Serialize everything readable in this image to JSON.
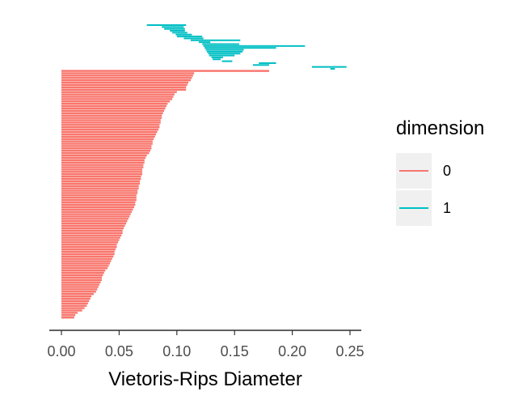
{
  "chart_data": {
    "type": "barcode",
    "title": "",
    "xlabel": "Vietoris-Rips Diameter",
    "ylabel": "",
    "xlim": [
      -0.01,
      0.26
    ],
    "x_ticks": [
      0.0,
      0.05,
      0.1,
      0.15,
      0.2,
      0.25
    ],
    "x_tick_labels": [
      "0.00",
      "0.05",
      "0.10",
      "0.15",
      "0.20",
      "0.25"
    ],
    "grid": false,
    "legend": {
      "title": "dimension",
      "position": "right",
      "entries": [
        {
          "label": "0",
          "color": "#F8766D"
        },
        {
          "label": "1",
          "color": "#00BFC4"
        }
      ]
    },
    "series": [
      {
        "name": "0",
        "color": "#F8766D",
        "bars": [
          [
            0,
            0.18
          ],
          [
            0,
            0.115
          ],
          [
            0,
            0.114
          ],
          [
            0,
            0.113
          ],
          [
            0,
            0.112
          ],
          [
            0,
            0.11
          ],
          [
            0,
            0.109
          ],
          [
            0,
            0.108
          ],
          [
            0,
            0.108
          ],
          [
            0,
            0.1
          ],
          [
            0,
            0.098
          ],
          [
            0,
            0.097
          ],
          [
            0,
            0.096
          ],
          [
            0,
            0.094
          ],
          [
            0,
            0.092
          ],
          [
            0,
            0.091
          ],
          [
            0,
            0.09
          ],
          [
            0,
            0.089
          ],
          [
            0,
            0.088
          ],
          [
            0,
            0.087
          ],
          [
            0,
            0.087
          ],
          [
            0,
            0.086
          ],
          [
            0,
            0.086
          ],
          [
            0,
            0.085
          ],
          [
            0,
            0.085
          ],
          [
            0,
            0.084
          ],
          [
            0,
            0.083
          ],
          [
            0,
            0.082
          ],
          [
            0,
            0.081
          ],
          [
            0,
            0.08
          ],
          [
            0,
            0.079
          ],
          [
            0,
            0.079
          ],
          [
            0,
            0.078
          ],
          [
            0,
            0.078
          ],
          [
            0,
            0.077
          ],
          [
            0,
            0.076
          ],
          [
            0,
            0.074
          ],
          [
            0,
            0.073
          ],
          [
            0,
            0.072
          ],
          [
            0,
            0.072
          ],
          [
            0,
            0.071
          ],
          [
            0,
            0.071
          ],
          [
            0,
            0.07
          ],
          [
            0,
            0.07
          ],
          [
            0,
            0.07
          ],
          [
            0,
            0.069
          ],
          [
            0,
            0.069
          ],
          [
            0,
            0.068
          ],
          [
            0,
            0.068
          ],
          [
            0,
            0.067
          ],
          [
            0,
            0.067
          ],
          [
            0,
            0.066
          ],
          [
            0,
            0.066
          ],
          [
            0,
            0.065
          ],
          [
            0,
            0.065
          ],
          [
            0,
            0.065
          ],
          [
            0,
            0.064
          ],
          [
            0,
            0.064
          ],
          [
            0,
            0.063
          ],
          [
            0,
            0.062
          ],
          [
            0,
            0.061
          ],
          [
            0,
            0.06
          ],
          [
            0,
            0.059
          ],
          [
            0,
            0.058
          ],
          [
            0,
            0.057
          ],
          [
            0,
            0.056
          ],
          [
            0,
            0.055
          ],
          [
            0,
            0.054
          ],
          [
            0,
            0.053
          ],
          [
            0,
            0.053
          ],
          [
            0,
            0.052
          ],
          [
            0,
            0.051
          ],
          [
            0,
            0.05
          ],
          [
            0,
            0.049
          ],
          [
            0,
            0.048
          ],
          [
            0,
            0.048
          ],
          [
            0,
            0.047
          ],
          [
            0,
            0.046
          ],
          [
            0,
            0.046
          ],
          [
            0,
            0.045
          ],
          [
            0,
            0.044
          ],
          [
            0,
            0.043
          ],
          [
            0,
            0.042
          ],
          [
            0,
            0.041
          ],
          [
            0,
            0.04
          ],
          [
            0,
            0.038
          ],
          [
            0,
            0.037
          ],
          [
            0,
            0.036
          ],
          [
            0,
            0.035
          ],
          [
            0,
            0.035
          ],
          [
            0,
            0.034
          ],
          [
            0,
            0.033
          ],
          [
            0,
            0.032
          ],
          [
            0,
            0.031
          ],
          [
            0,
            0.03
          ],
          [
            0,
            0.028
          ],
          [
            0,
            0.026
          ],
          [
            0,
            0.025
          ],
          [
            0,
            0.024
          ],
          [
            0,
            0.023
          ],
          [
            0,
            0.022
          ],
          [
            0,
            0.02
          ],
          [
            0,
            0.018
          ],
          [
            0,
            0.014
          ],
          [
            0,
            0.012
          ],
          [
            0,
            0.011
          ]
        ]
      },
      {
        "name": "1",
        "color": "#00BFC4",
        "bars": [
          [
            0.074,
            0.108
          ],
          [
            0.087,
            0.106
          ],
          [
            0.089,
            0.107
          ],
          [
            0.094,
            0.107
          ],
          [
            0.096,
            0.109
          ],
          [
            0.099,
            0.113
          ],
          [
            0.1,
            0.122
          ],
          [
            0.106,
            0.123
          ],
          [
            0.112,
            0.155
          ],
          [
            0.119,
            0.129
          ],
          [
            0.122,
            0.154
          ],
          [
            0.123,
            0.211
          ],
          [
            0.124,
            0.186
          ],
          [
            0.125,
            0.158
          ],
          [
            0.126,
            0.157
          ],
          [
            0.127,
            0.155
          ],
          [
            0.128,
            0.15
          ],
          [
            0.13,
            0.14
          ],
          [
            0.131,
            0.138
          ],
          [
            0.139,
            0.148
          ],
          [
            0.171,
            0.186
          ],
          [
            0.166,
            0.18
          ],
          [
            0.217,
            0.247
          ],
          [
            0.233,
            0.237
          ]
        ]
      }
    ]
  }
}
